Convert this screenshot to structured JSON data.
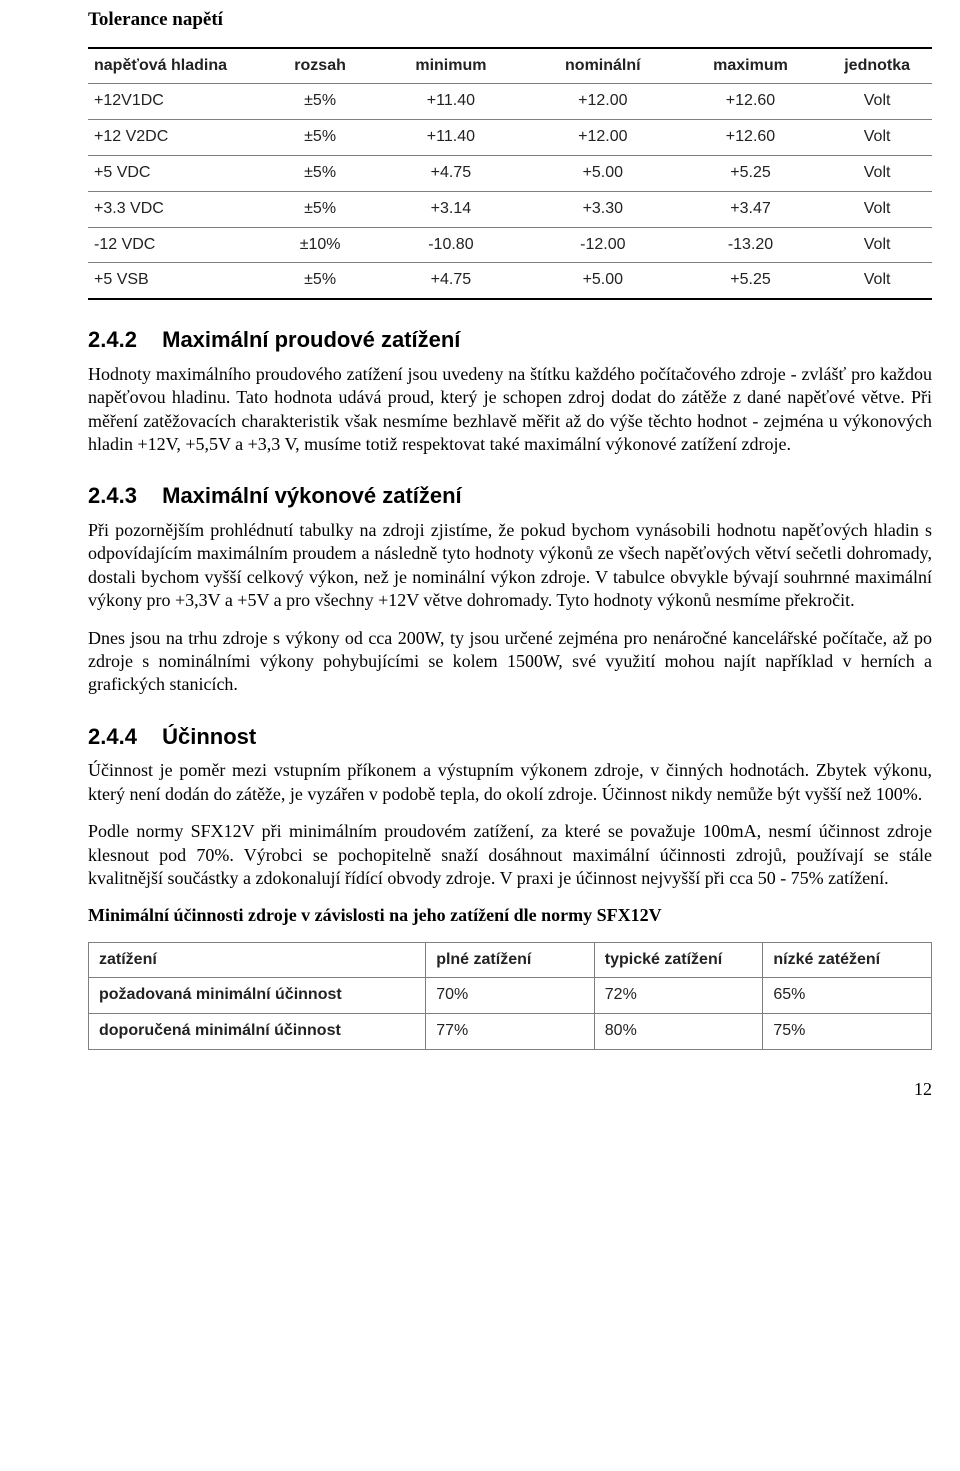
{
  "top_title": "Tolerance napětí",
  "tolerance_table": {
    "headers": [
      "napěťová hladina",
      "rozsah",
      "minimum",
      "nominální",
      "maximum",
      "jednotka"
    ],
    "rows": [
      [
        "+12V1DC",
        "±5%",
        "+11.40",
        "+12.00",
        "+12.60",
        "Volt"
      ],
      [
        "+12 V2DC",
        "±5%",
        "+11.40",
        "+12.00",
        "+12.60",
        "Volt"
      ],
      [
        "+5 VDC",
        "±5%",
        "+4.75",
        "+5.00",
        "+5.25",
        "Volt"
      ],
      [
        "+3.3 VDC",
        "±5%",
        "+3.14",
        "+3.30",
        "+3.47",
        "Volt"
      ],
      [
        "-12 VDC",
        "±10%",
        "-10.80",
        "-12.00",
        "-13.20",
        "Volt"
      ],
      [
        "+5 VSB",
        "±5%",
        "+4.75",
        "+5.00",
        "+5.25",
        "Volt"
      ]
    ]
  },
  "s242": {
    "num": "2.4.2",
    "title": "Maximální proudové zatížení",
    "p1": "Hodnoty maximálního proudového zatížení jsou uvedeny na štítku každého počítačového zdroje - zvlášť pro každou napěťovou hladinu. Tato hodnota udává proud, který je schopen zdroj dodat do zátěže z dané napěťové větve. Při měření zatěžovacích charakteristik však nesmíme bezhlavě měřit až do výše těchto hodnot - zejména u výkonových hladin +12V, +5,5V a +3,3 V, musíme totiž respektovat také maximální výkonové zatížení zdroje."
  },
  "s243": {
    "num": "2.4.3",
    "title": "Maximální výkonové zatížení",
    "p1": "Při pozornějším prohlédnutí tabulky na zdroji zjistíme, že pokud bychom vynásobili hodnotu napěťových hladin s odpovídajícím maximálním proudem a následně tyto hodnoty výkonů ze všech napěťových větví sečetli dohromady, dostali bychom vyšší celkový výkon, než je nominální výkon zdroje. V tabulce obvykle bývají souhrnné maximální výkony pro +3,3V  a +5V a pro všechny +12V větve dohromady. Tyto hodnoty výkonů nesmíme překročit.",
    "p2": "Dnes jsou na trhu zdroje s výkony od cca 200W, ty jsou určené zejména pro nenáročné kancelářské počítače, až po zdroje s nominálními výkony pohybujícími se kolem 1500W, své využití mohou najít například v herních a grafických stanicích."
  },
  "s244": {
    "num": "2.4.4",
    "title": "Účinnost",
    "p1": "Účinnost je poměr mezi vstupním příkonem a výstupním výkonem zdroje, v činných hodnotách. Zbytek výkonu, který není dodán do zátěže, je vyzářen v podobě tepla, do okolí zdroje. Účinnost nikdy nemůže být vyšší než 100%.",
    "p2": "Podle normy SFX12V při minimálním proudovém zatížení, za které se považuje 100mA, nesmí účinnost zdroje klesnout pod 70%. Výrobci se pochopitelně snaží dosáhnout maximální účinnosti zdrojů, používají se stále kvalitnější součástky a zdokonalují řídící obvody zdroje. V praxi je účinnost nejvyšší při cca 50 - 75% zatížení.",
    "table_caption": "Minimální účinnosti zdroje v závislosti na jeho zatížení dle normy SFX12V"
  },
  "eff_table": {
    "headers": [
      "zatížení",
      "plné zatížení",
      "typické zatížení",
      "nízké zatéžení"
    ],
    "rows": [
      [
        "požadovaná minimální účinnost",
        "70%",
        "72%",
        "65%"
      ],
      [
        "doporučená minimální účinnost",
        "77%",
        "80%",
        "75%"
      ]
    ]
  },
  "page_number": "12"
}
